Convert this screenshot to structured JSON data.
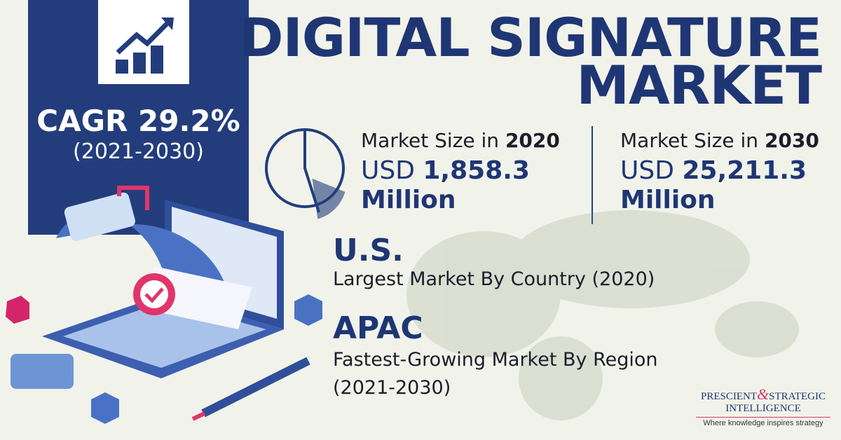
{
  "title": {
    "lines": [
      "DIGITAL SIGNATURE",
      "MARKET"
    ]
  },
  "cagr": {
    "label": "CAGR 29.2%",
    "period": "(2021-2030)"
  },
  "market_sizes": [
    {
      "label": "Market Size in ",
      "year": "2020",
      "currency": "USD ",
      "amount": "1,858.3",
      "unit": "Million"
    },
    {
      "label": "Market Size in ",
      "year": "2030",
      "currency": "USD ",
      "amount": "25,211.3",
      "unit": "Million"
    }
  ],
  "highlights": [
    {
      "heading": "U.S.",
      "lines": [
        "Largest Market By Country (2020)"
      ]
    },
    {
      "heading": "APAC",
      "lines": [
        "Fastest-Growing Market By Region",
        "(2021-2030)"
      ]
    }
  ],
  "logo": {
    "name_left": "PRESCIENT",
    "ampersand": "&",
    "name_right": "STRATEGIC",
    "name_bottom": "INTELLIGENCE",
    "tagline": "Where knowledge inspires strategy"
  }
}
